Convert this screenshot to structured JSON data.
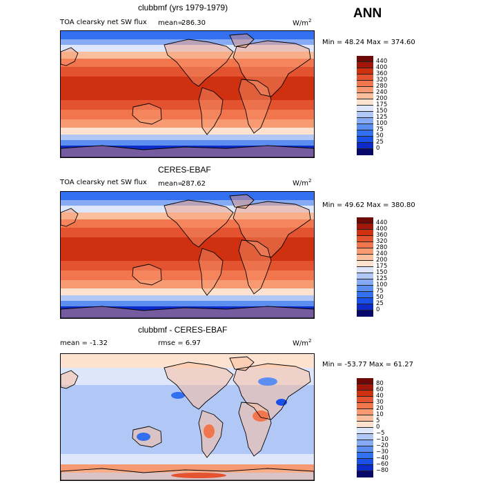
{
  "season": "ANN",
  "panels": [
    {
      "title": "clubbmf (yrs 1979-1979)",
      "variable": "TOA clearsky net SW flux",
      "stat_label": "mean=",
      "stat_value": "286.30",
      "units": "W/m",
      "units_sup": "2",
      "range_text": "Min =  48.24 Max = 374.60",
      "colorbar_levels": [
        "440",
        "400",
        "360",
        "320",
        "280",
        "240",
        "200",
        "175",
        "150",
        "125",
        "100",
        "75",
        "50",
        "25",
        "0"
      ],
      "kind": "model"
    },
    {
      "title": "CERES-EBAF",
      "variable": "TOA clearsky net SW flux",
      "stat_label": "mean=",
      "stat_value": "287.62",
      "units": "W/m",
      "units_sup": "2",
      "range_text": "Min =  49.62 Max = 380.80",
      "colorbar_levels": [
        "440",
        "400",
        "360",
        "320",
        "280",
        "240",
        "200",
        "175",
        "150",
        "125",
        "100",
        "75",
        "50",
        "25",
        "0"
      ],
      "kind": "obs"
    },
    {
      "title": "clubbmf - CERES-EBAF",
      "mean_text": "mean =   -1.32",
      "rmse_text": "rmse =    6.97",
      "units": "W/m",
      "units_sup": "2",
      "range_text": "Min = -53.77 Max =   61.27",
      "colorbar_levels": [
        "80",
        "60",
        "40",
        "30",
        "20",
        "10",
        "5",
        "0",
        "−5",
        "−10",
        "−20",
        "−30",
        "−40",
        "−60",
        "−80"
      ],
      "kind": "diff"
    }
  ],
  "chart_data": [
    {
      "type": "heatmap",
      "title": "clubbmf (yrs 1979-1979)",
      "subtitle": "TOA clearsky net SW flux",
      "mean": 286.3,
      "min": 48.24,
      "max": 374.6,
      "units": "W/m2",
      "levels": [
        0,
        25,
        50,
        75,
        100,
        125,
        150,
        175,
        200,
        240,
        280,
        320,
        360,
        400,
        440
      ],
      "colors": [
        "#08086b",
        "#0c2bc8",
        "#1a50e6",
        "#3370f0",
        "#5c8ef2",
        "#86aaf4",
        "#b1c8f7",
        "#dde6fb",
        "#fde2d0",
        "#fbbf9e",
        "#f79a72",
        "#f2764d",
        "#e45330",
        "#cf3010",
        "#a3160a",
        "#6e0a05"
      ]
    },
    {
      "type": "heatmap",
      "title": "CERES-EBAF",
      "subtitle": "TOA clearsky net SW flux",
      "mean": 287.62,
      "min": 49.62,
      "max": 380.8,
      "units": "W/m2",
      "levels": [
        0,
        25,
        50,
        75,
        100,
        125,
        150,
        175,
        200,
        240,
        280,
        320,
        360,
        400,
        440
      ],
      "colors": [
        "#08086b",
        "#0c2bc8",
        "#1a50e6",
        "#3370f0",
        "#5c8ef2",
        "#86aaf4",
        "#b1c8f7",
        "#dde6fb",
        "#fde2d0",
        "#fbbf9e",
        "#f79a72",
        "#f2764d",
        "#e45330",
        "#cf3010",
        "#a3160a",
        "#6e0a05"
      ]
    },
    {
      "type": "heatmap",
      "title": "clubbmf - CERES-EBAF",
      "mean": -1.32,
      "rmse": 6.97,
      "min": -53.77,
      "max": 61.27,
      "units": "W/m2",
      "levels": [
        -80,
        -60,
        -40,
        -30,
        -20,
        -10,
        -5,
        0,
        5,
        10,
        20,
        30,
        40,
        60,
        80
      ],
      "colors": [
        "#08086b",
        "#0c2bc8",
        "#1a50e6",
        "#3370f0",
        "#5c8ef2",
        "#86aaf4",
        "#b1c8f7",
        "#dde6fb",
        "#fde2d0",
        "#fbbf9e",
        "#f79a72",
        "#f2764d",
        "#e45330",
        "#cf3010",
        "#a3160a",
        "#6e0a05"
      ]
    }
  ]
}
